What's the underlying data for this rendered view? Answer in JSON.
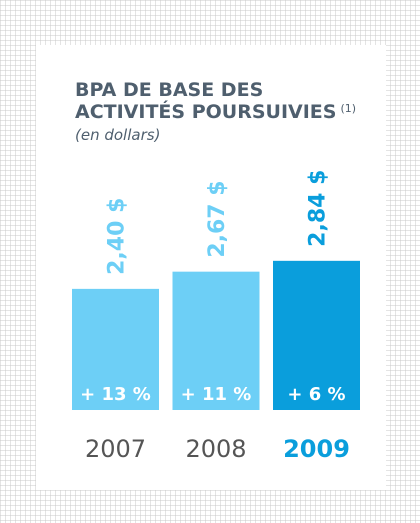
{
  "chart_data": {
    "type": "bar",
    "title_lines": [
      "BPA DE BASE DES",
      "ACTIVITÉS POURSUIVIES"
    ],
    "title_note": "(1)",
    "subtitle": "(en dollars)",
    "categories": [
      "2007",
      "2008",
      "2009"
    ],
    "values": [
      2.4,
      2.67,
      2.84
    ],
    "value_labels": [
      "2,40 $",
      "2,67 $",
      "2,84 $"
    ],
    "growth_labels": [
      "+ 13 %",
      "+ 11 %",
      "+ 6 %"
    ],
    "colors": [
      "#6dcff6",
      "#6dcff6",
      "#0a9edc"
    ],
    "highlight": "2009",
    "ylim": [
      0.5,
      2.9
    ]
  }
}
